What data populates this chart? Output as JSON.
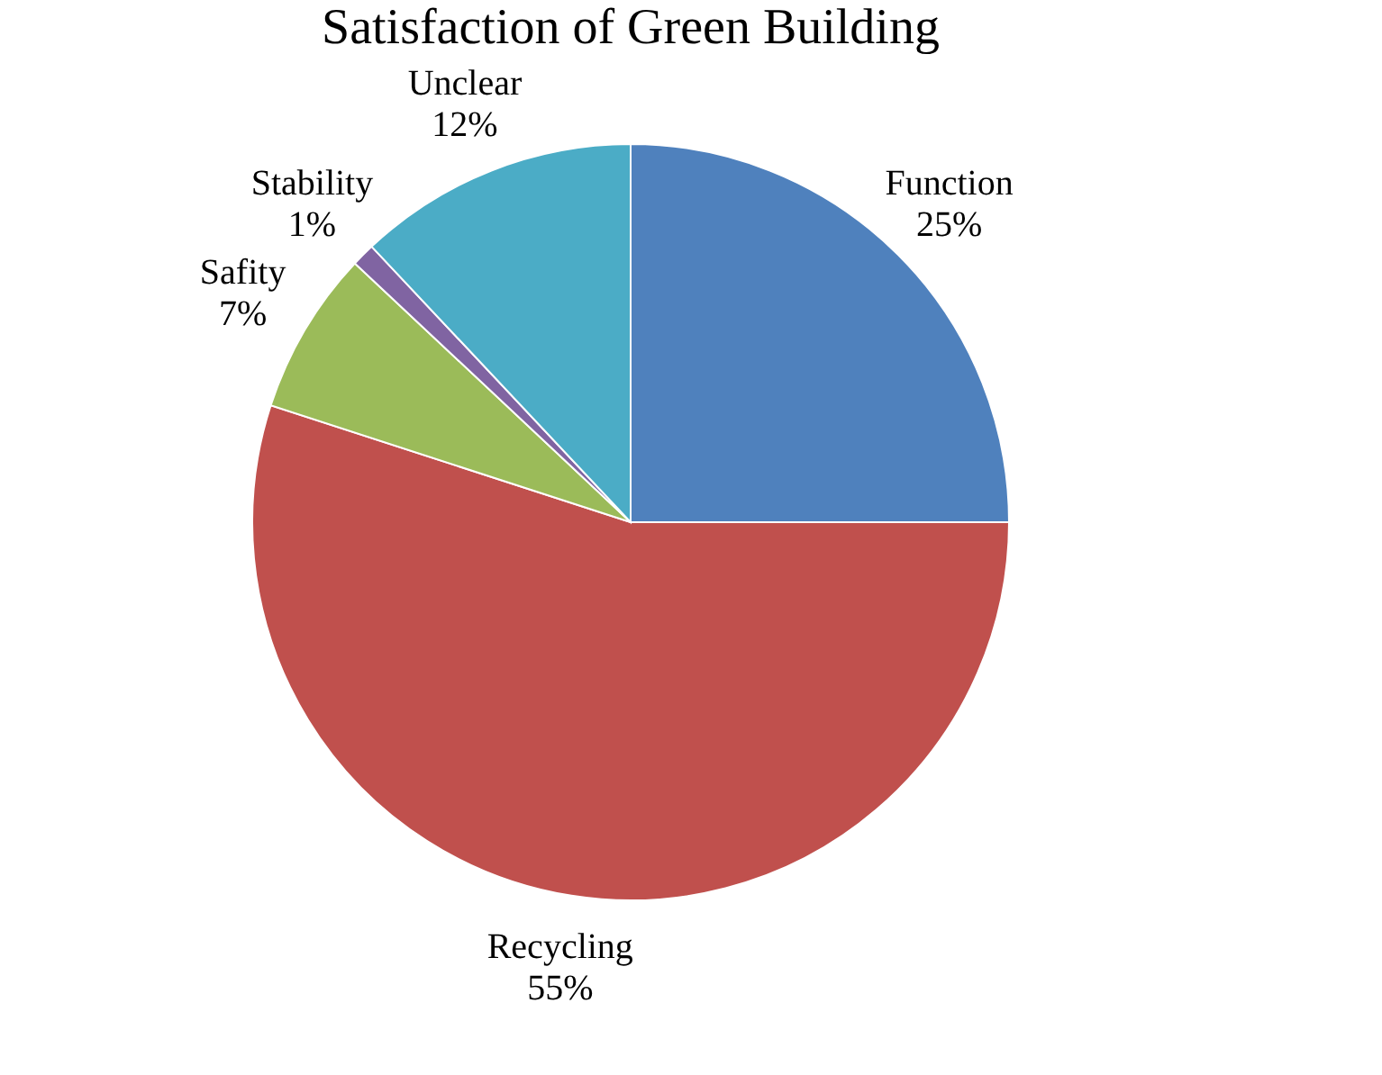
{
  "chart_data": {
    "type": "pie",
    "title": "Satisfaction of Green Building",
    "categories": [
      "Function",
      "Recycling",
      "Safity",
      "Stability",
      "Unclear"
    ],
    "values": [
      25,
      55,
      7,
      1,
      12
    ],
    "value_labels": [
      "25%",
      "55%",
      "7%",
      "1%",
      "12%"
    ],
    "colors": [
      "#4f81bd",
      "#c0504d",
      "#9bbb59",
      "#8064a2",
      "#4bacc6"
    ],
    "legend": false
  }
}
